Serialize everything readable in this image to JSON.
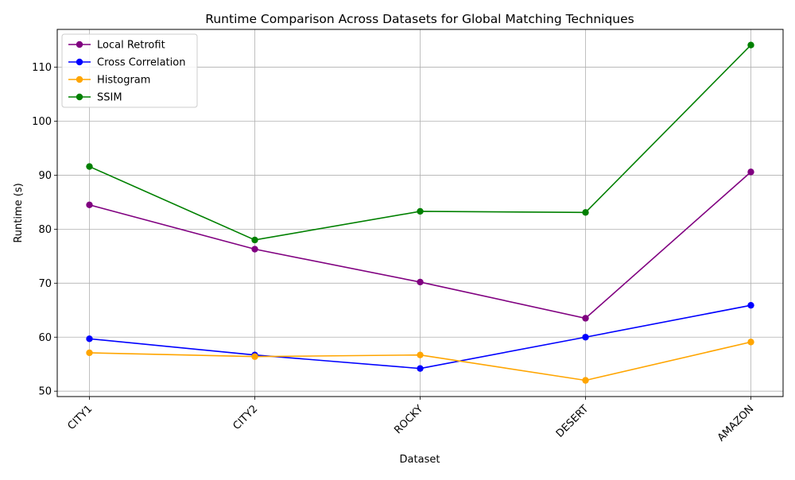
{
  "chart_data": {
    "type": "line",
    "title": "Runtime Comparison Across Datasets for Global Matching Techniques",
    "xlabel": "Dataset",
    "ylabel": "Runtime (s)",
    "categories": [
      "CITY1",
      "CITY2",
      "ROCKY",
      "DESERT",
      "AMAZON"
    ],
    "ylim": [
      49,
      117
    ],
    "yticks": [
      50,
      60,
      70,
      80,
      90,
      100,
      110
    ],
    "grid": true,
    "legend_position": "top-left",
    "series": [
      {
        "name": "Local Retrofit",
        "color": "#800080",
        "values": [
          84.5,
          76.3,
          70.2,
          63.5,
          90.6
        ]
      },
      {
        "name": "Cross Correlation",
        "color": "#0000ff",
        "values": [
          59.7,
          56.7,
          54.2,
          60.0,
          65.9
        ]
      },
      {
        "name": "Histogram",
        "color": "#ffa500",
        "values": [
          57.1,
          56.4,
          56.7,
          52.0,
          59.1
        ]
      },
      {
        "name": "SSIM",
        "color": "#008000",
        "values": [
          91.6,
          78.0,
          83.3,
          83.1,
          114.1
        ]
      }
    ]
  }
}
